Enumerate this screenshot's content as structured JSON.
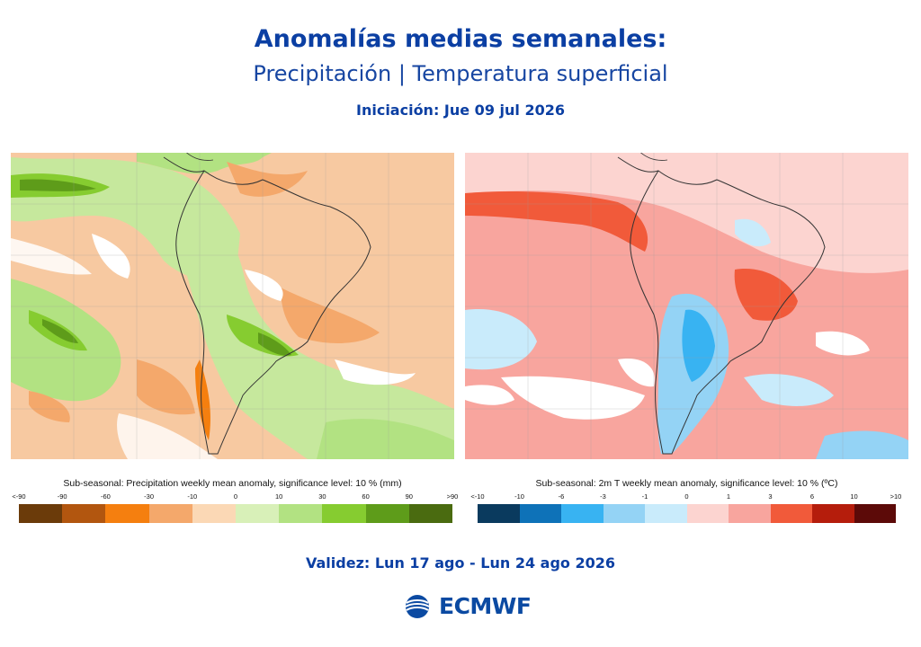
{
  "header": {
    "title": "Anomalías medias semanales:",
    "subtitle": "Precipitación | Temperatura superficial",
    "initiation": "Iniciación: Jue 09 jul 2026"
  },
  "maps": {
    "precipitation": {
      "caption": "Sub-seasonal: Precipitation weekly mean anomaly, significance level: 10 % (mm)",
      "ticks": [
        "<-90",
        "-90",
        "-60",
        "-30",
        "-10",
        "0",
        "10",
        "30",
        "60",
        "90",
        ">90"
      ],
      "colors": [
        "#6b3b0a",
        "#b2560f",
        "#f57f0f",
        "#f4a86b",
        "#fbd8b5",
        "#d8f0b8",
        "#b2e282",
        "#86cc30",
        "#5e9c1a",
        "#4a6b10"
      ]
    },
    "temperature": {
      "caption": "Sub-seasonal: 2m T weekly mean anomaly, significance level: 10 % (ºC)",
      "ticks": [
        "<-10",
        "-10",
        "-6",
        "-3",
        "-1",
        "0",
        "1",
        "3",
        "6",
        "10",
        ">10"
      ],
      "colors": [
        "#0a3a5e",
        "#0e72b8",
        "#38b3f2",
        "#94d3f5",
        "#c9ebfb",
        "#fcd4d0",
        "#f8a59e",
        "#f15a3a",
        "#b51d0c",
        "#5c0a08"
      ]
    }
  },
  "footer": {
    "validity": "Validez: Lun 17 ago - Lun 24 ago 2026",
    "logo_text": "ECMWF"
  }
}
